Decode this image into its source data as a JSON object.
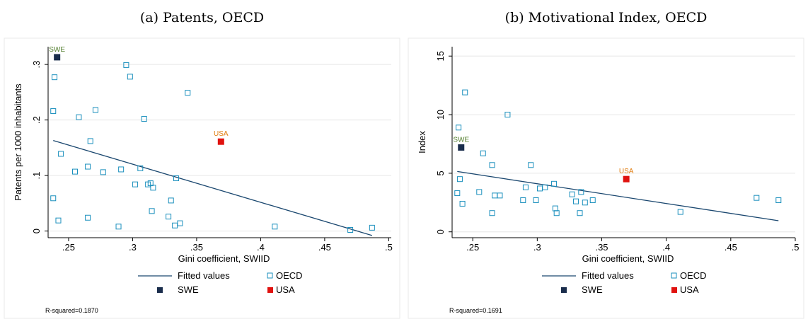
{
  "panels": [
    {
      "title": "(a) Patents, OECD",
      "note": "R-squared=0.1870",
      "chart_data": {
        "type": "scatter",
        "xlabel": "Gini coefficient, SWIID",
        "ylabel": "Patents per 1000 inhabitants",
        "xlim": [
          0.234,
          0.502
        ],
        "ylim": [
          -0.012,
          0.332
        ],
        "xticks": [
          0.25,
          0.3,
          0.35,
          0.4,
          0.45,
          0.5
        ],
        "xtick_labels": [
          ".25",
          ".3",
          ".35",
          ".4",
          ".45",
          ".5"
        ],
        "yticks": [
          0,
          0.1,
          0.2,
          0.3
        ],
        "ytick_labels": [
          "0",
          ".1",
          ".2",
          ".3"
        ],
        "grid": true,
        "legend": [
          "Fitted values",
          "OECD",
          "SWE",
          "USA"
        ],
        "fitted_line": {
          "x": [
            0.238,
            0.487
          ],
          "y": [
            0.163,
            -0.008
          ]
        },
        "series": [
          {
            "name": "OECD",
            "color": "#1a8fbd",
            "marker": "hollow-square",
            "points": [
              [
                0.238,
                0.059
              ],
              [
                0.238,
                0.216
              ],
              [
                0.239,
                0.277
              ],
              [
                0.242,
                0.019
              ],
              [
                0.244,
                0.139
              ],
              [
                0.255,
                0.107
              ],
              [
                0.258,
                0.205
              ],
              [
                0.265,
                0.116
              ],
              [
                0.265,
                0.024
              ],
              [
                0.267,
                0.162
              ],
              [
                0.271,
                0.218
              ],
              [
                0.277,
                0.106
              ],
              [
                0.289,
                0.008
              ],
              [
                0.291,
                0.111
              ],
              [
                0.295,
                0.299
              ],
              [
                0.298,
                0.278
              ],
              [
                0.302,
                0.084
              ],
              [
                0.306,
                0.113
              ],
              [
                0.309,
                0.202
              ],
              [
                0.312,
                0.084
              ],
              [
                0.314,
                0.086
              ],
              [
                0.315,
                0.036
              ],
              [
                0.316,
                0.078
              ],
              [
                0.328,
                0.026
              ],
              [
                0.33,
                0.055
              ],
              [
                0.333,
                0.01
              ],
              [
                0.334,
                0.095
              ],
              [
                0.337,
                0.014
              ],
              [
                0.343,
                0.249
              ],
              [
                0.411,
                0.008
              ],
              [
                0.47,
                0.002
              ],
              [
                0.487,
                0.006
              ]
            ]
          },
          {
            "name": "SWE",
            "color": "#1a2d4c",
            "marker": "filled-square",
            "label": "SWE",
            "label_color": "#4f7b2a",
            "points": [
              [
                0.241,
                0.313
              ]
            ]
          },
          {
            "name": "USA",
            "color": "#e0120f",
            "marker": "filled-square",
            "label": "USA",
            "label_color": "#e07b0c",
            "points": [
              [
                0.369,
                0.161
              ]
            ]
          }
        ]
      }
    },
    {
      "title": "(b) Motivational Index, OECD",
      "note": "R-squared=0.1691",
      "chart_data": {
        "type": "scatter",
        "xlabel": "Gini coefficient, SWIID",
        "ylabel": "Index",
        "xlim": [
          0.234,
          0.5
        ],
        "ylim": [
          -0.5,
          15.8
        ],
        "xticks": [
          0.25,
          0.3,
          0.35,
          0.4,
          0.45,
          0.5
        ],
        "xtick_labels": [
          ".25",
          ".3",
          ".35",
          ".4",
          ".45",
          ".5"
        ],
        "yticks": [
          0,
          5,
          10,
          15
        ],
        "ytick_labels": [
          "0",
          "5",
          "10",
          "15"
        ],
        "grid": true,
        "legend": [
          "Fitted values",
          "OECD",
          "SWE",
          "USA"
        ],
        "fitted_line": {
          "x": [
            0.238,
            0.487
          ],
          "y": [
            5.15,
            0.95
          ]
        },
        "series": [
          {
            "name": "OECD",
            "color": "#1a8fbd",
            "marker": "hollow-square",
            "points": [
              [
                0.238,
                3.3
              ],
              [
                0.239,
                8.9
              ],
              [
                0.24,
                4.5
              ],
              [
                0.242,
                2.4
              ],
              [
                0.244,
                11.9
              ],
              [
                0.255,
                3.4
              ],
              [
                0.258,
                6.7
              ],
              [
                0.265,
                5.7
              ],
              [
                0.265,
                1.6
              ],
              [
                0.267,
                3.1
              ],
              [
                0.271,
                3.1
              ],
              [
                0.277,
                10.0
              ],
              [
                0.289,
                2.7
              ],
              [
                0.291,
                3.8
              ],
              [
                0.295,
                5.7
              ],
              [
                0.299,
                2.7
              ],
              [
                0.302,
                3.7
              ],
              [
                0.306,
                3.8
              ],
              [
                0.313,
                4.1
              ],
              [
                0.314,
                2.0
              ],
              [
                0.315,
                1.6
              ],
              [
                0.327,
                3.2
              ],
              [
                0.33,
                2.6
              ],
              [
                0.333,
                1.6
              ],
              [
                0.334,
                3.4
              ],
              [
                0.337,
                2.5
              ],
              [
                0.343,
                2.7
              ],
              [
                0.411,
                1.7
              ],
              [
                0.47,
                2.9
              ],
              [
                0.487,
                2.7
              ]
            ]
          },
          {
            "name": "SWE",
            "color": "#1a2d4c",
            "marker": "filled-square",
            "label": "SWE",
            "label_color": "#4f7b2a",
            "points": [
              [
                0.241,
                7.2
              ]
            ]
          },
          {
            "name": "USA",
            "color": "#e0120f",
            "marker": "filled-square",
            "label": "USA",
            "label_color": "#e07b0c",
            "points": [
              [
                0.369,
                4.5
              ]
            ]
          }
        ]
      }
    }
  ]
}
